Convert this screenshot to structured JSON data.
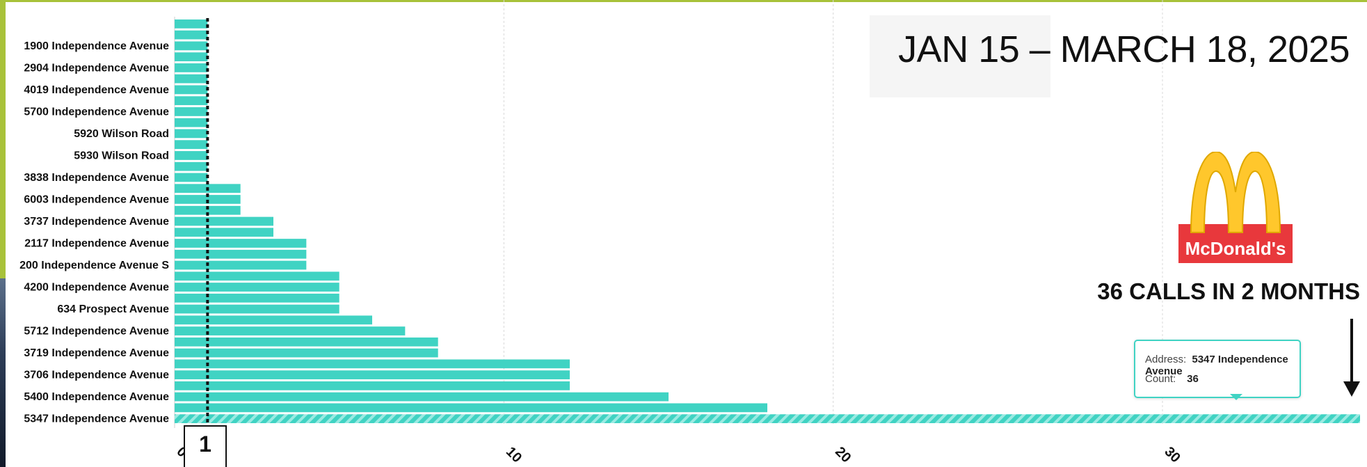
{
  "title": "JAN 15 – MARCH 18, 2025",
  "logo": {
    "brand_text": "McDonald's",
    "arch_color": "#ffc72c",
    "box_color": "#da291c"
  },
  "callout": "36 CALLS IN 2 MONTHS",
  "tooltip": {
    "address_key": "Address:",
    "address_value": "5347 Independence Avenue",
    "count_key": "Count:",
    "count_value": "36"
  },
  "reference_line": {
    "value": 1,
    "label": "1"
  },
  "colors": {
    "bar": "#40d3c3",
    "highlight_stripe": "#7fe4da",
    "grid": "#d8d8d8",
    "text": "#111111"
  },
  "chart_data": {
    "type": "bar",
    "orientation": "horizontal",
    "y_tick_labels": [
      "1900 Independence Avenue",
      "2904 Independence Avenue",
      "4019 Independence Avenue",
      "5700 Independence Avenue",
      "5920 Wilson Road",
      "5930 Wilson Road",
      "3838 Independence Avenue",
      "6003 Independence Avenue",
      "3737 Independence Avenue",
      "2117 Independence Avenue",
      "200 Independence Avenue S",
      "4200 Independence Avenue",
      "634 Prospect Avenue",
      "5712 Independence Avenue",
      "3719 Independence Avenue",
      "3706 Independence Avenue",
      "5400 Independence Avenue",
      "5347 Independence Avenue"
    ],
    "label_every": 2,
    "values": [
      1,
      1,
      1,
      1,
      1,
      1,
      1,
      1,
      1,
      1,
      1,
      1,
      1,
      1,
      1,
      2,
      2,
      2,
      3,
      3,
      4,
      4,
      4,
      5,
      5,
      5,
      5,
      6,
      7,
      8,
      8,
      12,
      12,
      12,
      15,
      18,
      36
    ],
    "highlight_index": 36,
    "x_ticks": [
      0,
      10,
      20,
      30
    ],
    "xlim": [
      0,
      36
    ],
    "grid": true
  }
}
